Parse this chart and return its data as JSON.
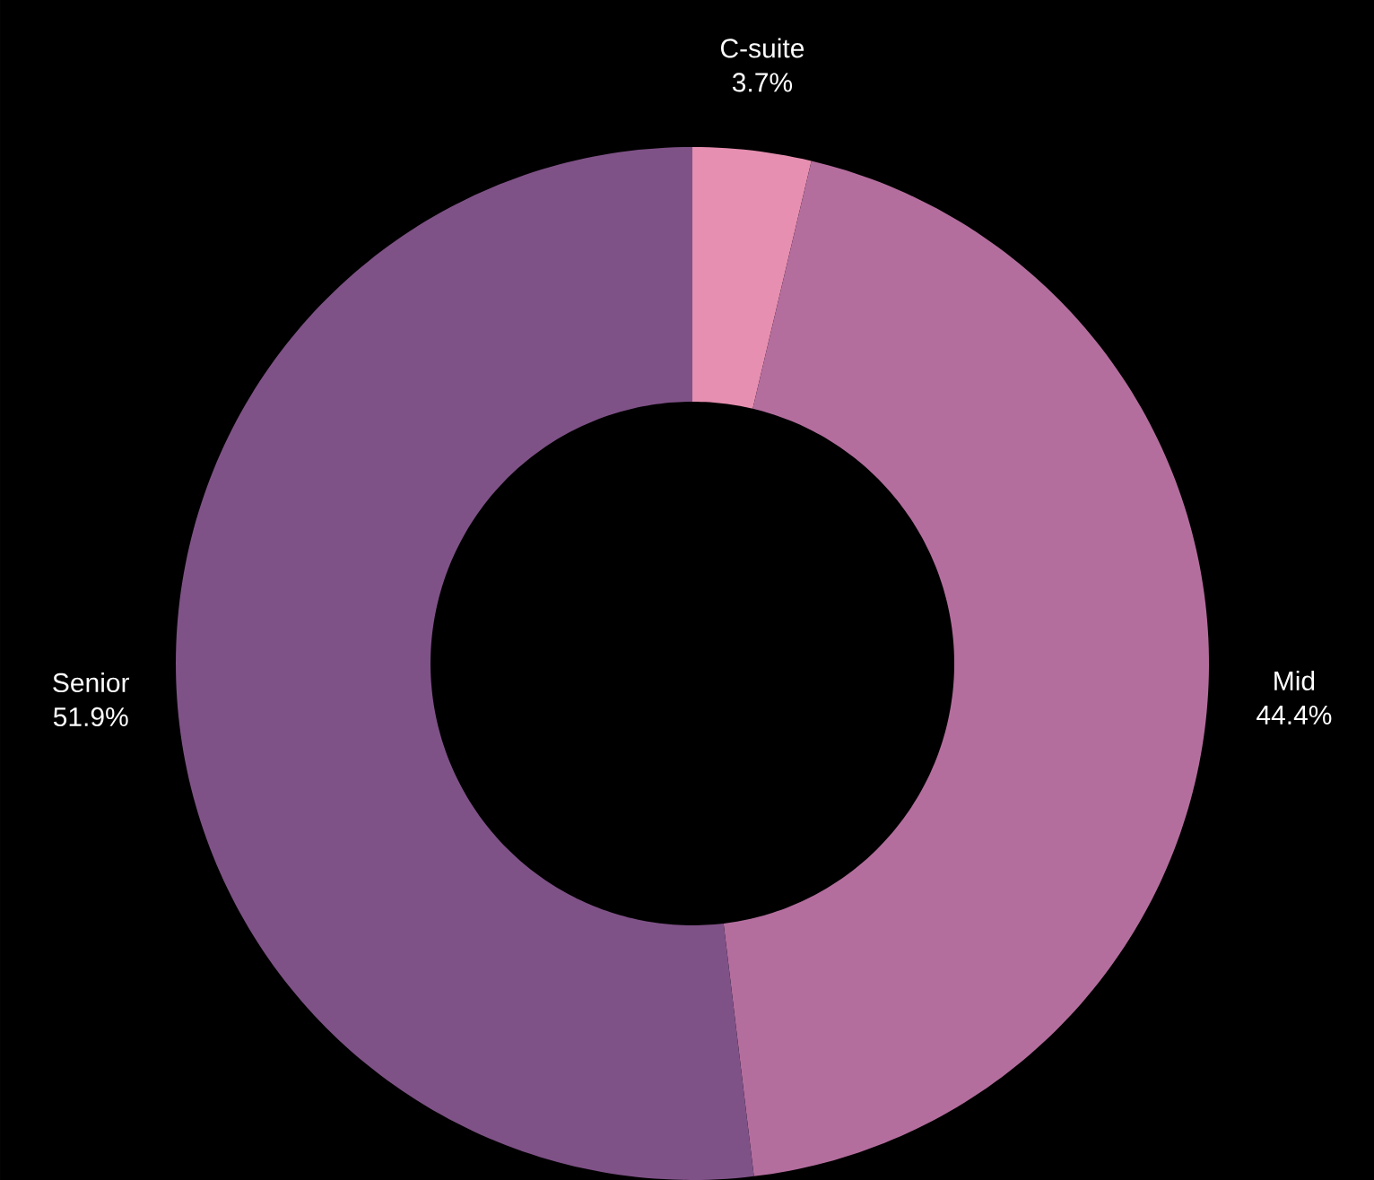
{
  "chart_data": {
    "type": "donut",
    "categories": [
      "C-suite",
      "Mid",
      "Senior"
    ],
    "values": [
      3.7,
      44.4,
      51.9
    ],
    "value_labels": [
      "3.7%",
      "44.4%",
      "51.9%"
    ],
    "colors": [
      "#e68fb0",
      "#b46e9e",
      "#7f5287"
    ]
  }
}
